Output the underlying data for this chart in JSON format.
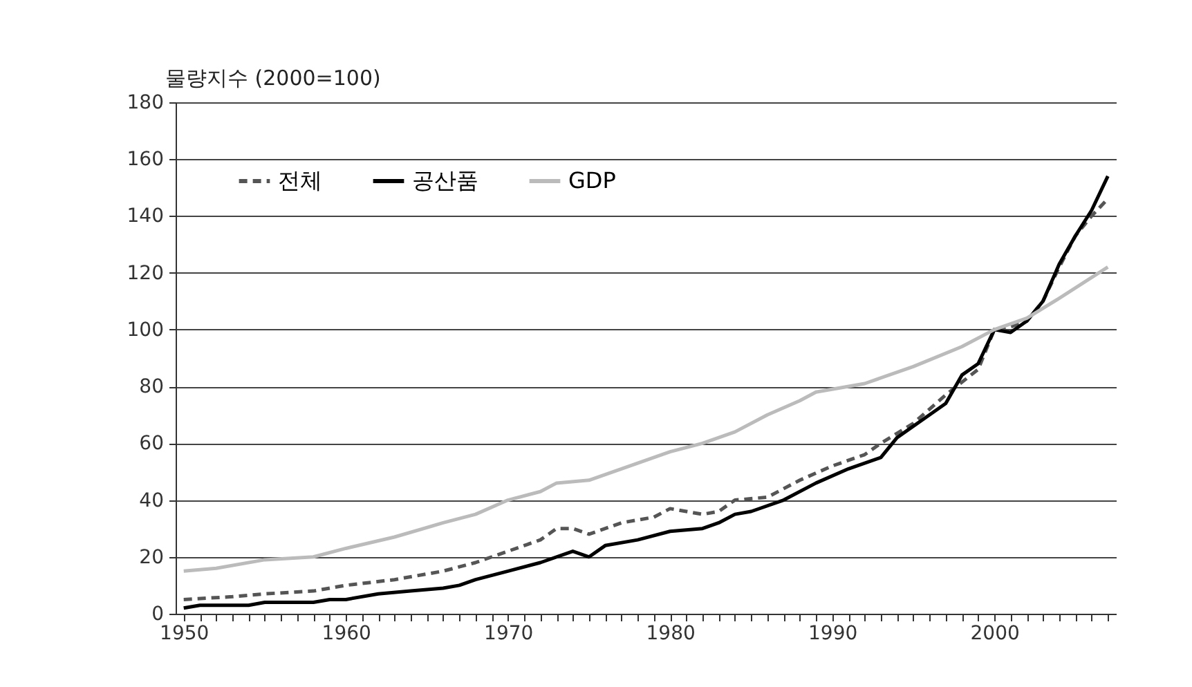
{
  "chart_data": {
    "type": "line",
    "ylabel": "물량지수 (2000=100)",
    "xlim": [
      1949.5,
      2007.5
    ],
    "ylim": [
      0,
      180
    ],
    "yticks": [
      0,
      20,
      40,
      60,
      80,
      100,
      120,
      140,
      160,
      180
    ],
    "xticks": [
      1950,
      {
        "value": 1951,
        "label": null
      },
      {
        "value": 1952,
        "label": null
      },
      {
        "value": 1953,
        "label": null
      },
      {
        "value": 1954,
        "label": null
      },
      {
        "value": 1955,
        "label": null
      },
      {
        "value": 1956,
        "label": null
      },
      {
        "value": 1957,
        "label": null
      },
      {
        "value": 1958,
        "label": null
      },
      {
        "value": 1959,
        "label": null
      },
      1960,
      {
        "value": 1961,
        "label": null
      },
      {
        "value": 1962,
        "label": null
      },
      {
        "value": 1963,
        "label": null
      },
      {
        "value": 1964,
        "label": null
      },
      {
        "value": 1965,
        "label": null
      },
      {
        "value": 1966,
        "label": null
      },
      {
        "value": 1967,
        "label": null
      },
      {
        "value": 1968,
        "label": null
      },
      {
        "value": 1969,
        "label": null
      },
      1970,
      {
        "value": 1971,
        "label": null
      },
      {
        "value": 1972,
        "label": null
      },
      {
        "value": 1973,
        "label": null
      },
      {
        "value": 1974,
        "label": null
      },
      {
        "value": 1975,
        "label": null
      },
      {
        "value": 1976,
        "label": null
      },
      {
        "value": 1977,
        "label": null
      },
      {
        "value": 1978,
        "label": null
      },
      {
        "value": 1979,
        "label": null
      },
      1980,
      {
        "value": 1981,
        "label": null
      },
      {
        "value": 1982,
        "label": null
      },
      {
        "value": 1983,
        "label": null
      },
      {
        "value": 1984,
        "label": null
      },
      {
        "value": 1985,
        "label": null
      },
      {
        "value": 1986,
        "label": null
      },
      {
        "value": 1987,
        "label": null
      },
      {
        "value": 1988,
        "label": null
      },
      {
        "value": 1989,
        "label": null
      },
      1990,
      {
        "value": 1991,
        "label": null
      },
      {
        "value": 1992,
        "label": null
      },
      {
        "value": 1993,
        "label": null
      },
      {
        "value": 1994,
        "label": null
      },
      {
        "value": 1995,
        "label": null
      },
      {
        "value": 1996,
        "label": null
      },
      {
        "value": 1997,
        "label": null
      },
      {
        "value": 1998,
        "label": null
      },
      {
        "value": 1999,
        "label": null
      },
      2000,
      {
        "value": 2001,
        "label": null
      },
      {
        "value": 2002,
        "label": null
      },
      {
        "value": 2003,
        "label": null
      },
      {
        "value": 2004,
        "label": null
      },
      {
        "value": 2005,
        "label": null
      },
      {
        "value": 2006,
        "label": null
      },
      {
        "value": 2007,
        "label": null
      }
    ],
    "grid": "y",
    "legend": "top left",
    "series": [
      {
        "name": "전체",
        "color": "#555555",
        "line_style": "dashed",
        "x": [
          1950,
          1953,
          1955,
          1958,
          1960,
          1963,
          1966,
          1968,
          1970,
          1972,
          1973,
          1974,
          1975,
          1977,
          1979,
          1980,
          1981,
          1982,
          1983,
          1984,
          1986,
          1988,
          1990,
          1992,
          1993,
          1995,
          1997,
          1999,
          2000,
          2001,
          2002,
          2003,
          2004,
          2005,
          2006,
          2007
        ],
        "values": [
          5,
          6,
          7,
          8,
          10,
          12,
          15,
          18,
          22,
          26,
          30,
          30,
          28,
          32,
          34,
          37,
          36,
          35,
          36,
          40,
          41,
          47,
          52,
          56,
          60,
          67,
          77,
          86,
          100,
          101,
          103,
          110,
          122,
          133,
          140,
          146
        ]
      },
      {
        "name": "공산품",
        "color": "#000000",
        "line_style": "solid",
        "x": [
          1950,
          1951,
          1954,
          1955,
          1958,
          1959,
          1960,
          1962,
          1964,
          1966,
          1967,
          1968,
          1970,
          1972,
          1974,
          1975,
          1976,
          1978,
          1980,
          1982,
          1983,
          1984,
          1985,
          1987,
          1989,
          1991,
          1993,
          1994,
          1996,
          1997,
          1998,
          1999,
          2000,
          2001,
          2002,
          2003,
          2004,
          2005,
          2006,
          2007
        ],
        "values": [
          2,
          3,
          3,
          4,
          4,
          5,
          5,
          7,
          8,
          9,
          10,
          12,
          15,
          18,
          22,
          20,
          24,
          26,
          29,
          30,
          32,
          35,
          36,
          40,
          46,
          51,
          55,
          62,
          70,
          74,
          84,
          88,
          100,
          99,
          103,
          110,
          123,
          133,
          142,
          154
        ]
      },
      {
        "name": "GDP",
        "color": "#bbbbbb",
        "line_style": "solid",
        "x": [
          1950,
          1952,
          1955,
          1958,
          1960,
          1963,
          1966,
          1968,
          1970,
          1972,
          1973,
          1975,
          1977,
          1980,
          1982,
          1984,
          1986,
          1988,
          1989,
          1992,
          1995,
          1998,
          2000,
          2002,
          2004,
          2007
        ],
        "values": [
          15,
          16,
          19,
          20,
          23,
          27,
          32,
          35,
          40,
          43,
          46,
          47,
          51,
          57,
          60,
          64,
          70,
          75,
          78,
          81,
          87,
          94,
          100,
          104,
          111,
          122
        ]
      }
    ]
  }
}
